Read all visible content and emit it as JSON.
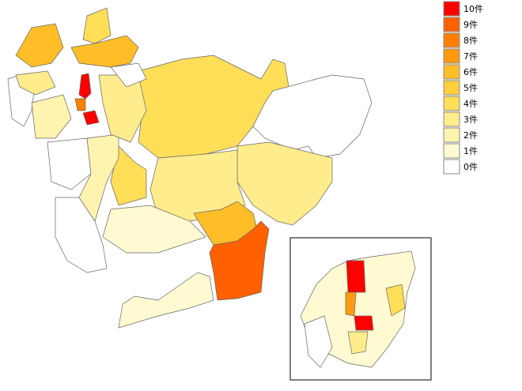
{
  "legend": [
    {
      "value": 10,
      "label": "10件",
      "color": "#ff0000"
    },
    {
      "value": 9,
      "label": "9件",
      "color": "#ff6000"
    },
    {
      "value": 8,
      "label": "8件",
      "color": "#ff8000"
    },
    {
      "value": 7,
      "label": "7件",
      "color": "#ff9a10"
    },
    {
      "value": 6,
      "label": "6件",
      "color": "#ffbe28"
    },
    {
      "value": 5,
      "label": "5件",
      "color": "#ffce3c"
    },
    {
      "value": 4,
      "label": "4件",
      "color": "#ffde58"
    },
    {
      "value": 3,
      "label": "3件",
      "color": "#ffec8c"
    },
    {
      "value": 2,
      "label": "2件",
      "color": "#fff3b0"
    },
    {
      "value": 1,
      "label": "1件",
      "color": "#fffad2"
    },
    {
      "value": 0,
      "label": "0件",
      "color": "#ffffff"
    }
  ],
  "region_values": [
    4,
    0,
    3,
    3,
    6,
    9,
    1,
    1,
    0,
    4,
    6,
    6,
    0,
    2,
    3,
    10,
    10,
    8,
    4,
    0,
    2,
    3,
    0,
    1,
    10,
    7,
    4,
    10,
    3,
    0
  ]
}
